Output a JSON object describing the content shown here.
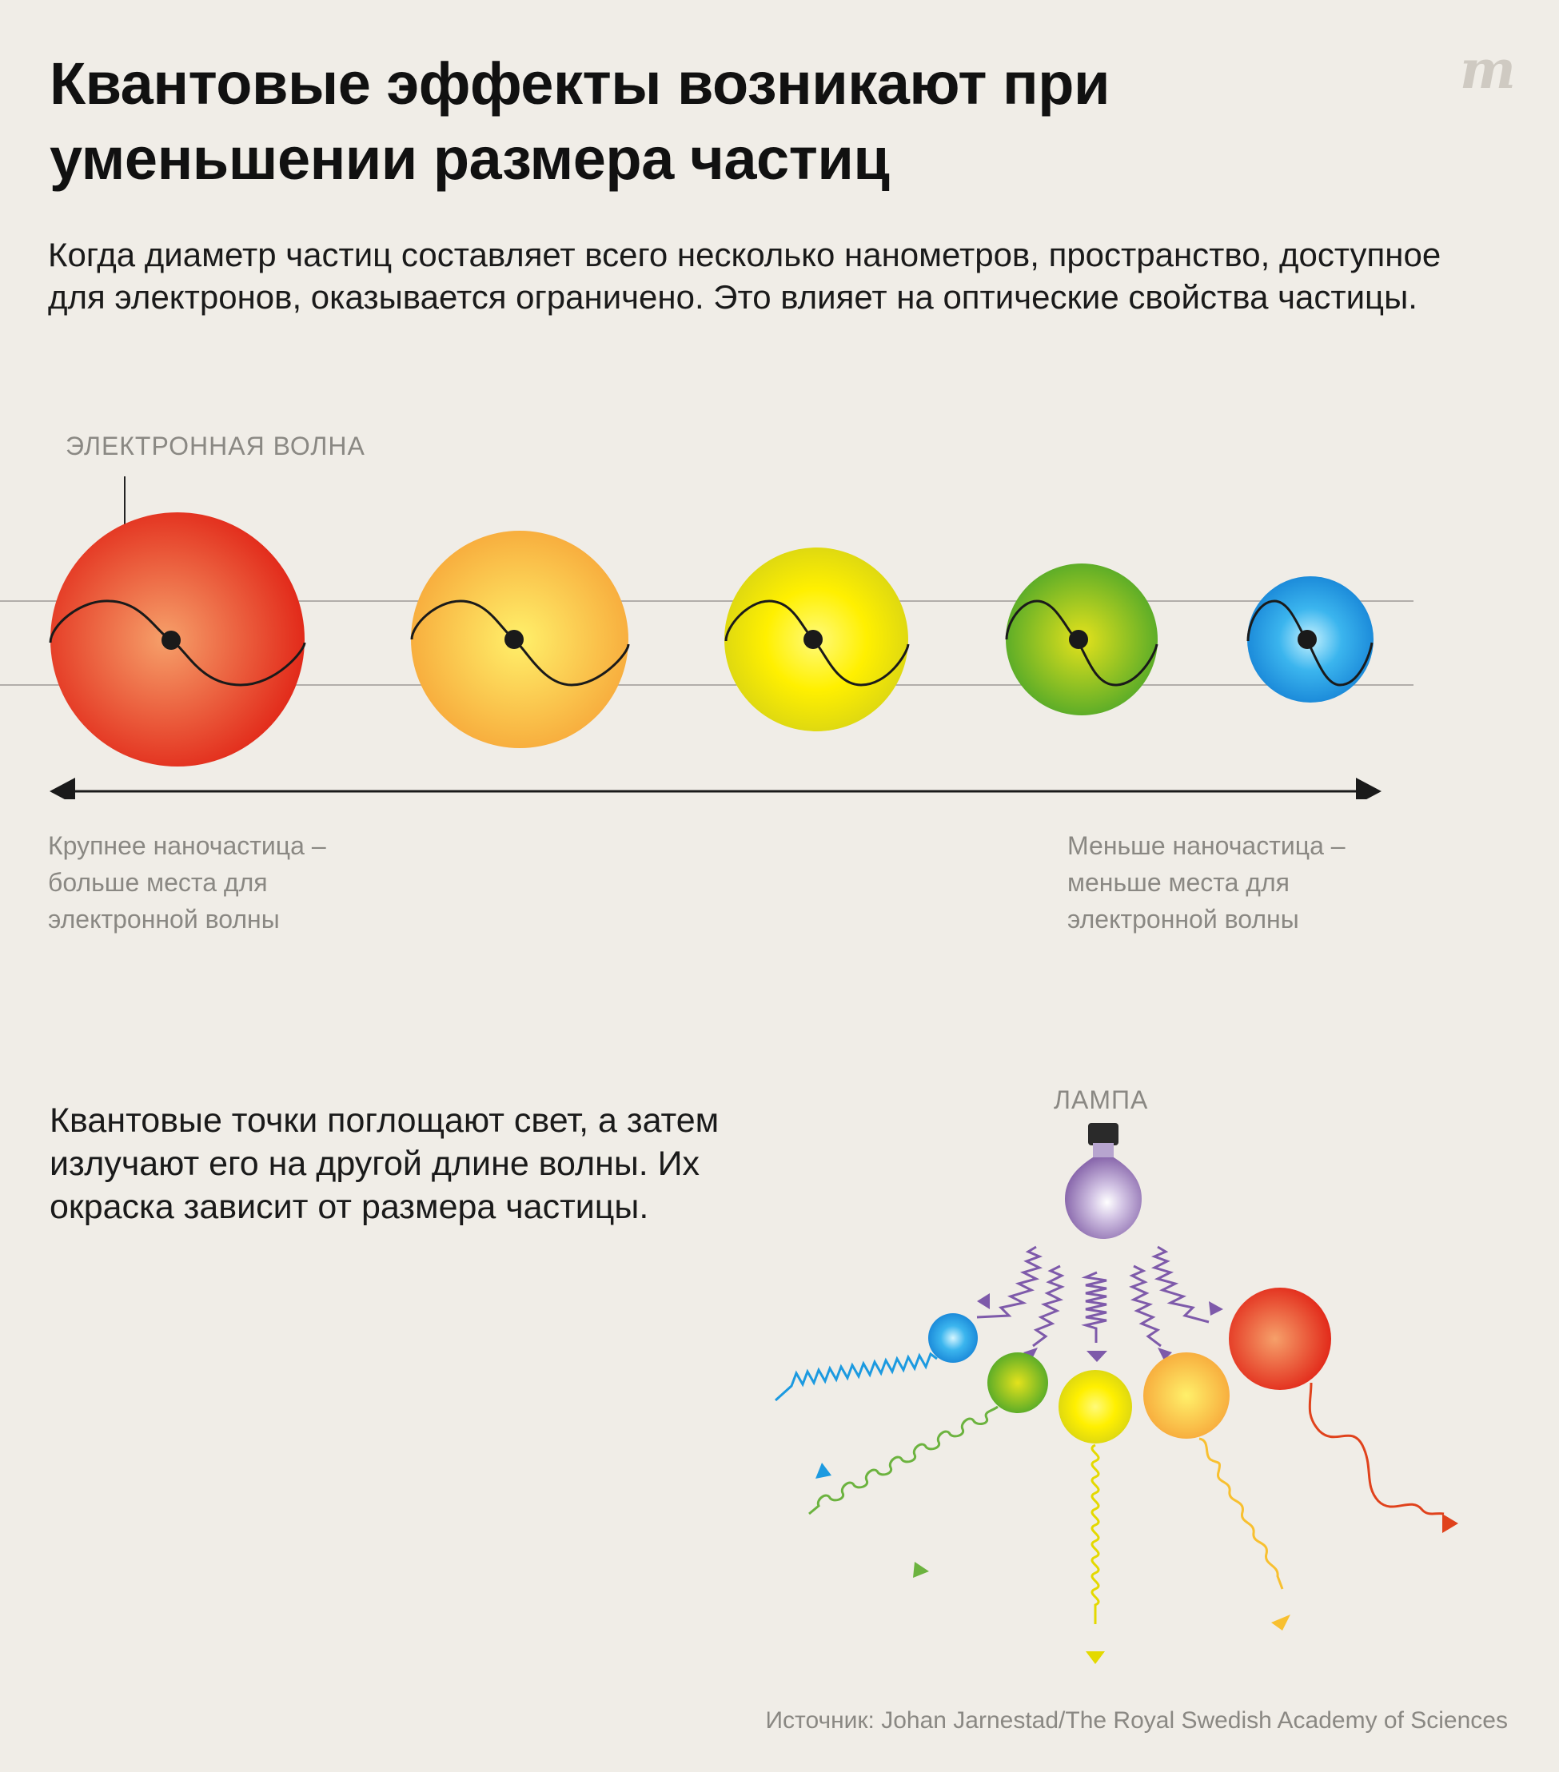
{
  "title": "Квантовые эффекты возникают при уменьшении размера частиц",
  "intro": "Когда диаметр частиц составляет всего несколько нанометров, пространство, доступное для электронов, оказывается ограничено. Это влияет на оптические свойства частицы.",
  "logo": "m",
  "wave_label": "ЭЛЕКТРОННАЯ ВОЛНА",
  "caption_left": "Крупнее наночастица – больше места для электронной волны",
  "caption_right": "Меньше наночастица – меньше места для электронной волны",
  "lower_text": "Квантовые точки поглощают свет, а затем излучают его на другой длине волны. Их окраска зависит от размера частицы.",
  "lamp_label": "ЛАМПА",
  "source": "Источник: Johan Jarnestad/The Royal Swedish Academy of Sciences",
  "particles": [
    {
      "color": "red",
      "inner": "#f6a06a",
      "outer": "#e22a1a"
    },
    {
      "color": "orange",
      "inner": "#fff06a",
      "outer": "#f7a83a"
    },
    {
      "color": "yellow",
      "inner": "#fffa7a",
      "outer": "#d6d210"
    },
    {
      "color": "green",
      "inner": "#dede1e",
      "outer": "#50a829"
    },
    {
      "color": "blue",
      "inner": "#bdf0ff",
      "outer": "#1790dc"
    }
  ],
  "lamp_color": "#8a69ad",
  "emission_colors": [
    "#1c9ae0",
    "#6cb33f",
    "#e4d900",
    "#f8c030",
    "#e0421c"
  ]
}
